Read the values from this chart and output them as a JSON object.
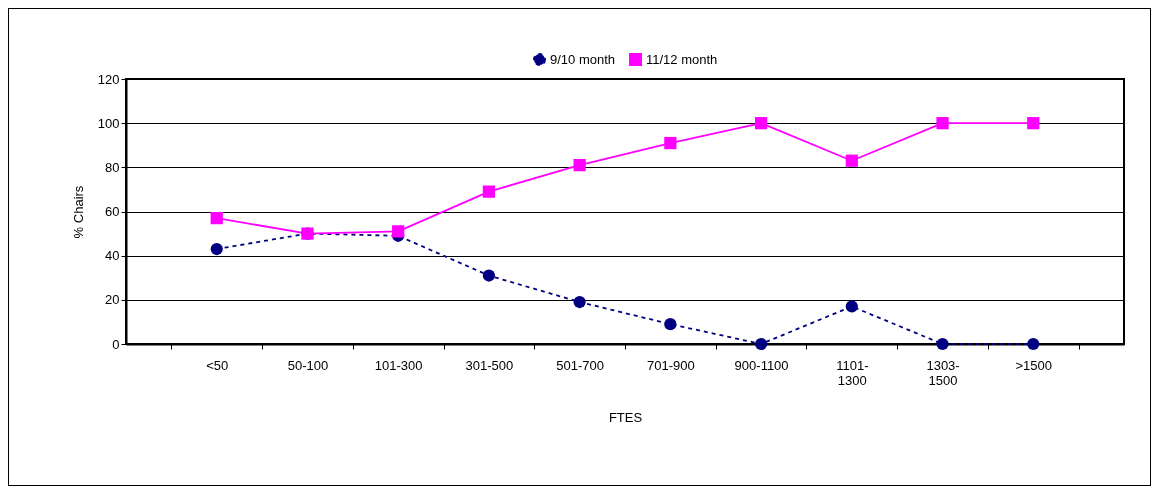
{
  "chart_data": {
    "type": "line",
    "xlabel": "FTES",
    "ylabel": "% Chairs",
    "categories": [
      "<50",
      "50-100",
      "101-300",
      "301-500",
      "501-700",
      "701-900",
      "900-1100",
      "1101-1300",
      "1303-1500",
      ">1500"
    ],
    "series": [
      {
        "name": "9/10 month",
        "color": "#000080",
        "marker": "circle",
        "line_style": "dashed",
        "values": [
          43,
          50,
          49,
          31,
          19,
          9,
          0,
          17,
          0,
          0
        ]
      },
      {
        "name": "11/12 month",
        "color": "#ff00ff",
        "marker": "square",
        "line_style": "solid",
        "values": [
          57,
          50,
          51,
          69,
          81,
          91,
          100,
          83,
          100,
          100
        ]
      }
    ],
    "ylim": [
      0,
      120
    ],
    "yticks": [
      0,
      20,
      40,
      60,
      80,
      100,
      120
    ],
    "grid": "y",
    "legend": "top"
  }
}
